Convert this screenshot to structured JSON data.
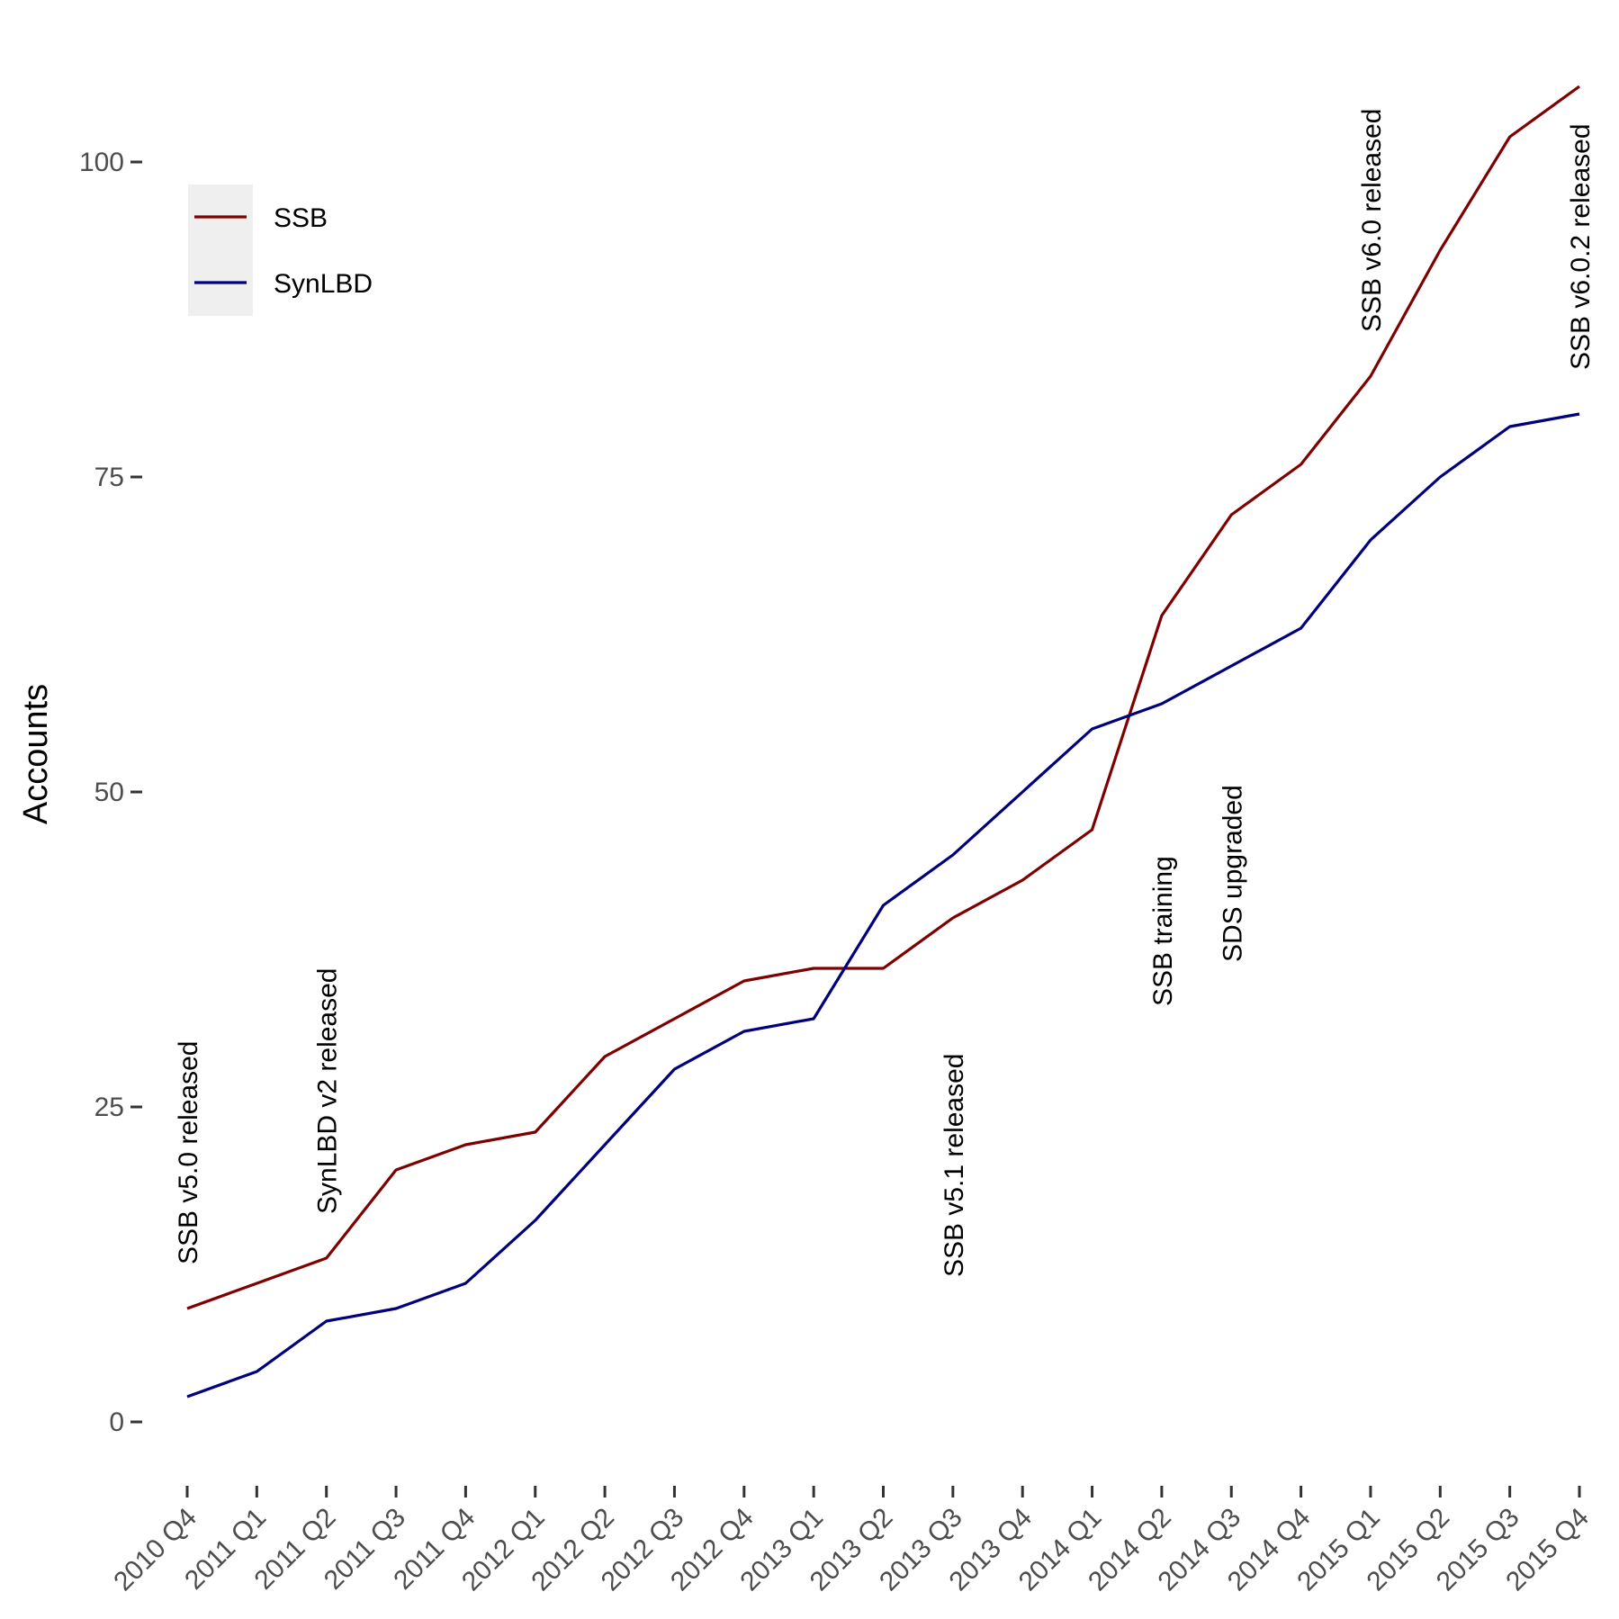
{
  "chart_data": {
    "type": "line",
    "title": "",
    "xlabel": "",
    "ylabel": "Accounts",
    "categories": [
      "2010 Q4",
      "2011 Q1",
      "2011 Q2",
      "2011 Q3",
      "2011 Q4",
      "2012 Q1",
      "2012 Q2",
      "2012 Q3",
      "2012 Q4",
      "2013 Q1",
      "2013 Q2",
      "2013 Q3",
      "2013 Q4",
      "2014 Q1",
      "2014 Q2",
      "2014 Q3",
      "2014 Q4",
      "2015 Q1",
      "2015 Q2",
      "2015 Q3",
      "2015 Q4"
    ],
    "yticks": [
      0,
      25,
      50,
      75,
      100
    ],
    "ylim": [
      -4,
      108
    ],
    "grid": false,
    "legend_position": "top-left",
    "series": [
      {
        "name": "SSB",
        "color": "#7f0000",
        "values": [
          9,
          11,
          13,
          20,
          22,
          23,
          29,
          32,
          35,
          36,
          36,
          40,
          43,
          47,
          64,
          72,
          76,
          83,
          93,
          102,
          106
        ]
      },
      {
        "name": "SynLBD",
        "color": "#00007f",
        "values": [
          2,
          4,
          8,
          9,
          11,
          16,
          22,
          28,
          31,
          32,
          41,
          45,
          50,
          55,
          57,
          60,
          63,
          70,
          75,
          79,
          80
        ]
      }
    ],
    "annotations": [
      {
        "text": "SSB v5.0 released",
        "category": "2010 Q4",
        "y": 12.5
      },
      {
        "text": "SynLBD v2 released",
        "category": "2011 Q2",
        "y": 16.5
      },
      {
        "text": "SSB v5.1 released",
        "category": "2013 Q3",
        "y": 11.5
      },
      {
        "text": "SSB training",
        "category": "2014 Q2",
        "y": 33
      },
      {
        "text": "SDS upgraded",
        "category": "2014 Q3",
        "y": 36.5
      },
      {
        "text": "SSB v6.0 released",
        "category": "2015 Q1",
        "y": 86.5
      },
      {
        "text": "SSB v6.0.2 released",
        "category": "2015 Q4",
        "y": 83.5
      }
    ]
  }
}
